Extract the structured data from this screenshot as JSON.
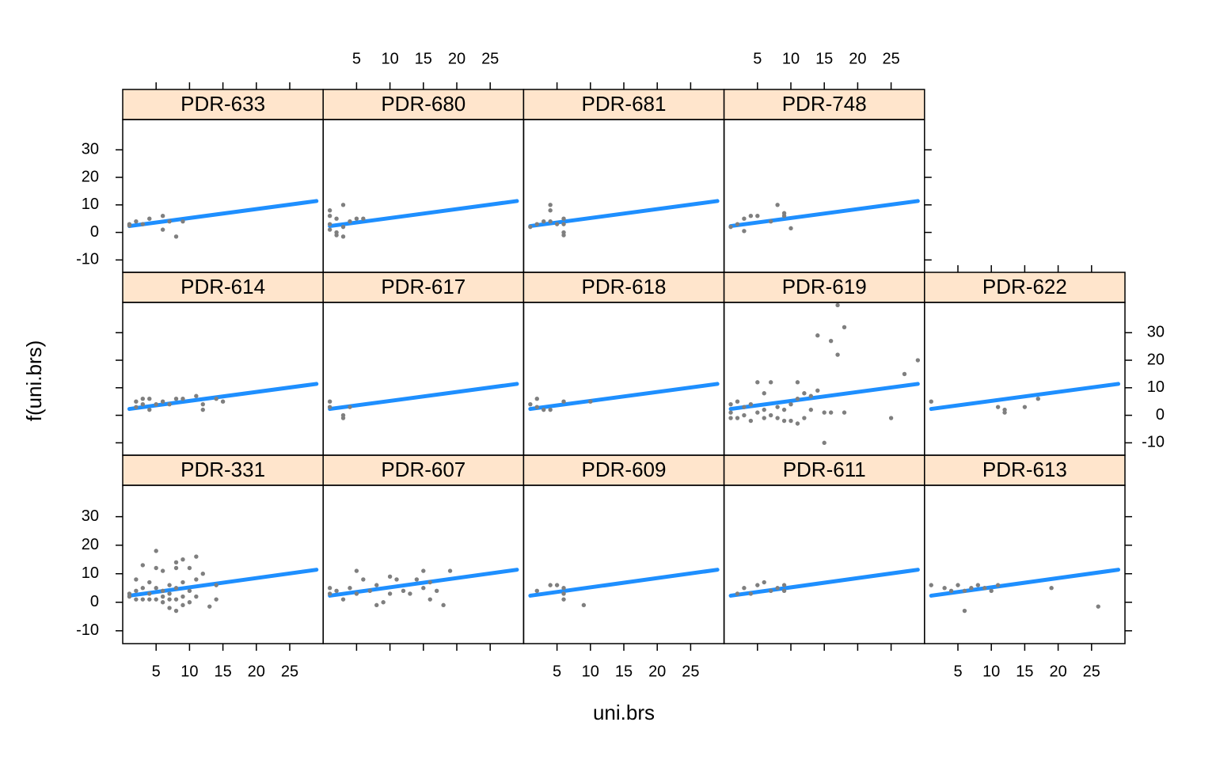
{
  "chart_data": {
    "type": "scatter",
    "xlabel": "uni.brs",
    "ylabel": "f(uni.brs)",
    "xlim": [
      0,
      30
    ],
    "ylim": [
      -14.5,
      41
    ],
    "xticks": [
      5,
      10,
      15,
      20,
      25
    ],
    "yticks": [
      -10,
      0,
      10,
      20,
      30
    ],
    "point_color": "#7f7f7f",
    "line_color": "#1e8fff",
    "strip_color": "#ffe5cc",
    "fit": {
      "x": [
        1,
        29
      ],
      "y": [
        2.3,
        11.4
      ]
    },
    "panels": [
      {
        "title": "PDR-331",
        "x": [
          1,
          1,
          2,
          2,
          2,
          3,
          3,
          3,
          4,
          4,
          4,
          5,
          5,
          5,
          5,
          6,
          6,
          6,
          6,
          7,
          7,
          7,
          7,
          8,
          8,
          8,
          8,
          8,
          9,
          9,
          9,
          9,
          10,
          10,
          10,
          11,
          11,
          11,
          12,
          13,
          14,
          14
        ],
        "y": [
          2,
          3,
          1,
          4,
          8,
          13,
          1,
          5,
          1,
          3,
          7,
          18,
          1,
          12,
          5,
          4,
          0,
          11,
          2,
          -2,
          6,
          3,
          1,
          14,
          12,
          -3,
          5,
          1,
          15,
          7,
          2,
          -1,
          12,
          4,
          0,
          16,
          8,
          2,
          10,
          -1.5,
          6,
          1
        ]
      },
      {
        "title": "PDR-607",
        "x": [
          1,
          1,
          2,
          3,
          4,
          5,
          5,
          6,
          7,
          8,
          8,
          9,
          10,
          10,
          11,
          12,
          13,
          14,
          15,
          15,
          16,
          16,
          17,
          18,
          19
        ],
        "y": [
          5,
          3,
          4,
          1,
          5,
          11,
          3,
          8,
          4,
          -1,
          6,
          0,
          9,
          3,
          8,
          4,
          3,
          8,
          11,
          5,
          7,
          1,
          4,
          -1,
          11
        ]
      },
      {
        "title": "PDR-609",
        "x": [
          2,
          4,
          5,
          6,
          6,
          6,
          9
        ],
        "y": [
          4,
          6,
          6,
          3,
          1,
          5,
          -1
        ]
      },
      {
        "title": "PDR-611",
        "x": [
          2,
          3,
          4,
          5,
          6,
          7,
          8,
          9,
          9
        ],
        "y": [
          3,
          5,
          3,
          6,
          7,
          4,
          5,
          6,
          4
        ]
      },
      {
        "title": "PDR-613",
        "x": [
          1,
          3,
          4,
          5,
          6,
          6,
          7,
          8,
          9,
          10,
          11,
          19,
          26
        ],
        "y": [
          6,
          5,
          4,
          6,
          -3,
          4,
          5,
          6,
          5,
          4,
          6,
          5,
          -1.5
        ]
      },
      {
        "title": "PDR-614",
        "x": [
          2,
          2,
          3,
          3,
          4,
          4,
          5,
          6,
          7,
          8,
          9,
          11,
          12,
          12,
          14,
          15
        ],
        "y": [
          5,
          3,
          6,
          4,
          6,
          2,
          4,
          5,
          4,
          6,
          6,
          7,
          4,
          2,
          6,
          5
        ]
      },
      {
        "title": "PDR-617",
        "x": [
          1,
          1,
          3,
          3,
          4
        ],
        "y": [
          5,
          3,
          0,
          -1,
          3
        ]
      },
      {
        "title": "PDR-618",
        "x": [
          1,
          2,
          2,
          3,
          4,
          6,
          10
        ],
        "y": [
          4,
          6,
          3,
          2,
          2,
          5,
          5
        ]
      },
      {
        "title": "PDR-619",
        "x": [
          1,
          1,
          1,
          2,
          2,
          3,
          3,
          4,
          4,
          5,
          5,
          6,
          6,
          6,
          7,
          7,
          8,
          8,
          9,
          9,
          10,
          10,
          11,
          11,
          11,
          12,
          12,
          13,
          13,
          14,
          14,
          15,
          15,
          16,
          16,
          17,
          17,
          18,
          18,
          25,
          27,
          29
        ],
        "y": [
          -1,
          1,
          4,
          5,
          -1,
          0,
          3,
          -2,
          4,
          1,
          12,
          -1,
          8,
          2,
          12,
          0,
          -1,
          3,
          2,
          -2,
          -2,
          4,
          12,
          6,
          -3,
          8,
          -1,
          7,
          2,
          29,
          9,
          1,
          -10,
          1,
          27,
          22,
          40,
          32,
          1,
          -1,
          15,
          20
        ]
      },
      {
        "title": "PDR-622",
        "x": [
          1,
          11,
          12,
          12,
          15,
          17
        ],
        "y": [
          5,
          3,
          2,
          1,
          3,
          6
        ]
      },
      {
        "title": "PDR-633",
        "x": [
          1,
          1,
          2,
          3,
          4,
          6,
          6,
          7,
          8,
          9
        ],
        "y": [
          3,
          2.5,
          4,
          3,
          5,
          6,
          1,
          4,
          -1.5,
          4
        ]
      },
      {
        "title": "PDR-680",
        "x": [
          1,
          1,
          1,
          1,
          2,
          2,
          2,
          3,
          3,
          3,
          4,
          5,
          6
        ],
        "y": [
          8,
          6,
          3,
          1,
          5,
          0,
          -1,
          10,
          2,
          -1.5,
          4,
          5,
          5
        ]
      },
      {
        "title": "PDR-681",
        "x": [
          1,
          2,
          3,
          4,
          4,
          4,
          5,
          6,
          6,
          6,
          6
        ],
        "y": [
          2,
          3,
          4,
          10,
          8,
          4,
          3,
          5,
          3,
          0,
          -1
        ]
      },
      {
        "title": "PDR-748",
        "x": [
          1,
          2,
          3,
          3,
          4,
          5,
          7,
          8,
          9,
          9,
          10
        ],
        "y": [
          2,
          3,
          0.5,
          5,
          6,
          6,
          4,
          10,
          6,
          7,
          1.5
        ]
      }
    ]
  }
}
